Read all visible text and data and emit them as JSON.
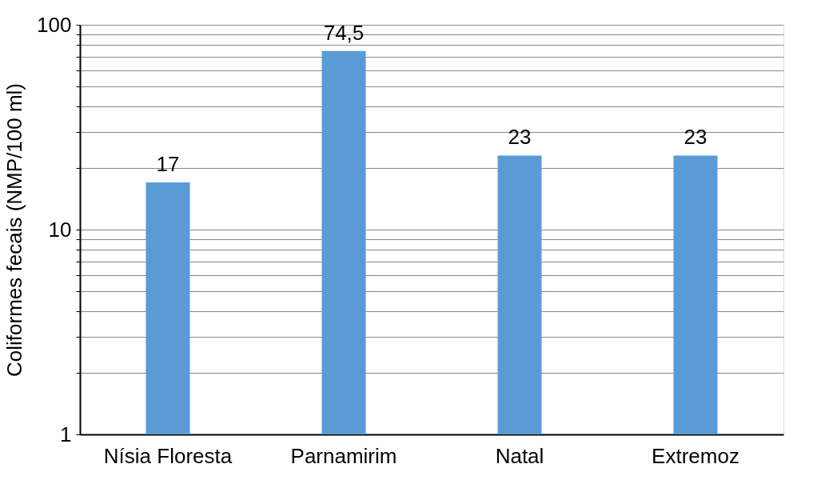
{
  "chart_data": {
    "type": "bar",
    "ylabel": "Coliformes fecais (NMP/100 ml)",
    "categories": [
      "Nísia Floresta",
      "Parnamirim",
      "Natal",
      "Extremoz"
    ],
    "values": [
      17,
      74.5,
      23,
      23
    ],
    "value_labels": [
      "17",
      "74,5",
      "23",
      "23"
    ],
    "color": "#5b9bd5",
    "log": true,
    "ylim": [
      1,
      100
    ],
    "yticks": [
      1,
      {
        "value": 2,
        "label": null
      },
      {
        "value": 3,
        "label": null
      },
      {
        "value": 4,
        "label": null
      },
      {
        "value": 5,
        "label": null
      },
      {
        "value": 6,
        "label": null
      },
      {
        "value": 7,
        "label": null
      },
      {
        "value": 8,
        "label": null
      },
      {
        "value": 9,
        "label": null
      },
      10,
      {
        "value": 20,
        "label": null
      },
      {
        "value": 30,
        "label": null
      },
      {
        "value": 40,
        "label": null
      },
      {
        "value": 50,
        "label": null
      },
      {
        "value": 60,
        "label": null
      },
      {
        "value": 70,
        "label": null
      },
      {
        "value": 80,
        "label": null
      },
      {
        "value": 90,
        "label": null
      },
      100
    ],
    "grid": true
  }
}
